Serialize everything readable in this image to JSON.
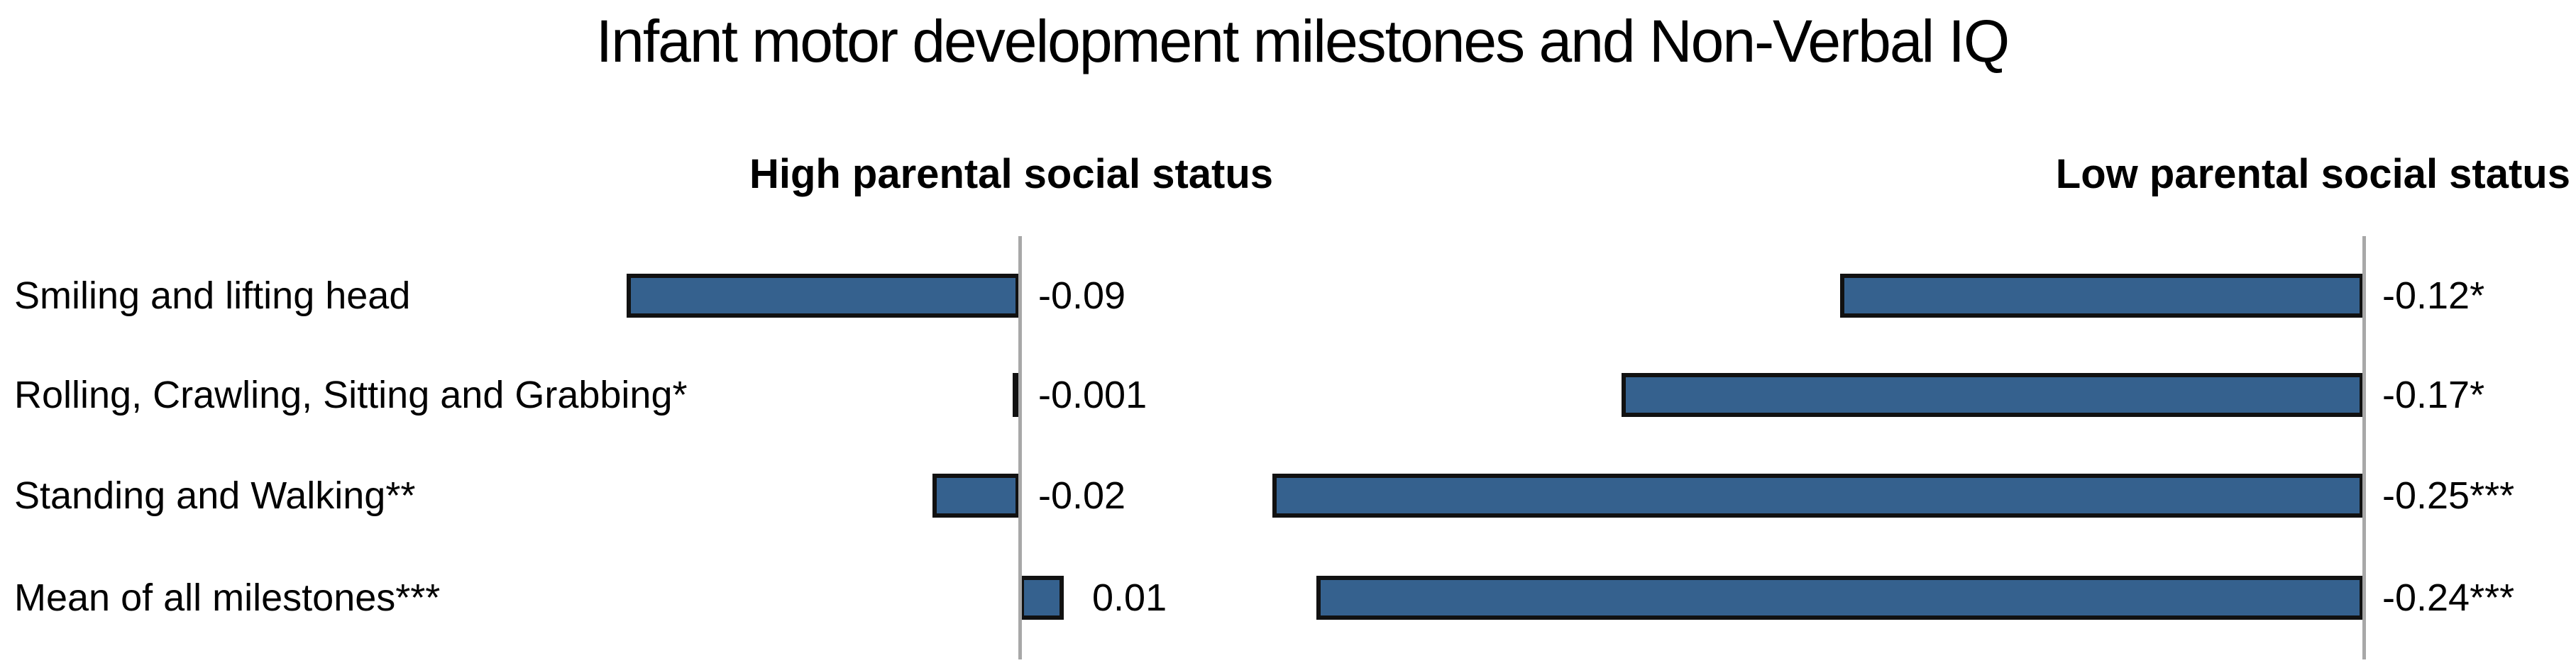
{
  "chart_data": {
    "type": "bar",
    "orientation": "horizontal",
    "title": "Infant motor development milestones and Non-Verbal IQ",
    "categories": [
      "Smiling and lifting head",
      "Rolling, Crawling, Sitting and Grabbing*",
      "Standing and Walking**",
      "Mean of all milestones***"
    ],
    "panels": [
      {
        "header": "High parental social status",
        "values": [
          -0.09,
          -0.001,
          -0.02,
          0.01
        ],
        "value_labels": [
          "-0.09",
          "-0.001",
          "-0.02",
          "0.01"
        ]
      },
      {
        "header": "Low parental social status",
        "values": [
          -0.12,
          -0.17,
          -0.25,
          -0.24
        ],
        "value_labels": [
          "-0.12*",
          "-0.17*",
          "-0.25***",
          "-0.24***"
        ]
      }
    ],
    "xlim": [
      -0.27,
      0.05
    ],
    "grid": false,
    "legend": "none",
    "value_labels_shown": true,
    "colors": {
      "bar_fill": "#35618E",
      "bar_border": "#111111",
      "axis_line": "#A8A8A8",
      "text": "#000000",
      "background": "#FFFFFF"
    }
  }
}
